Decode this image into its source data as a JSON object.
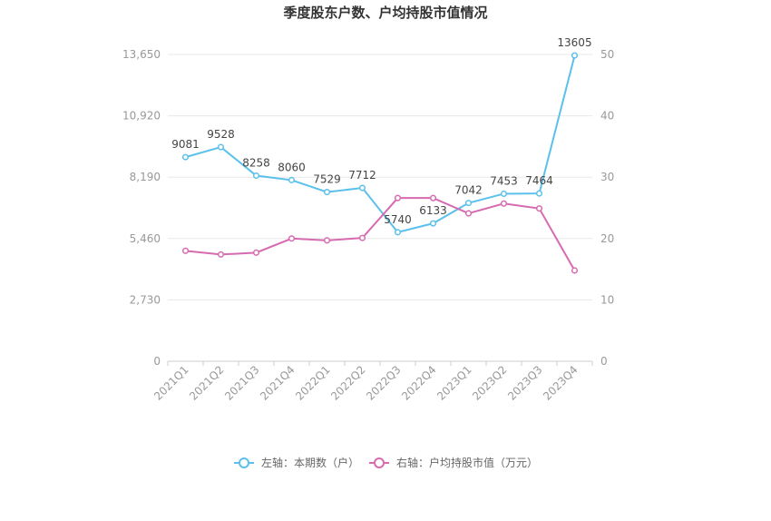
{
  "chart_data": {
    "type": "line",
    "title": "季度股东户数、户均持股市值情况",
    "categories": [
      "2021Q1",
      "2021Q2",
      "2021Q3",
      "2021Q4",
      "2022Q1",
      "2022Q2",
      "2022Q3",
      "2022Q4",
      "2023Q1",
      "2023Q2",
      "2023Q3",
      "2023Q4"
    ],
    "left_axis": {
      "ylim": [
        0,
        13650
      ],
      "ticks": [
        "0",
        "2,730",
        "5,460",
        "8,190",
        "10,920",
        "13,650"
      ]
    },
    "right_axis": {
      "ylim": [
        0,
        50
      ],
      "ticks": [
        "0",
        "10",
        "20",
        "30",
        "40",
        "50"
      ]
    },
    "series": [
      {
        "name": "左轴：本期数（户）",
        "axis": "left",
        "color": "#5bc0eb",
        "values": [
          9081,
          9528,
          8258,
          8060,
          7529,
          7712,
          5740,
          6133,
          7042,
          7453,
          7464,
          13605
        ],
        "labels": [
          "9081",
          "9528",
          "8258",
          "8060",
          "7529",
          "7712",
          "5740",
          "6133",
          "7042",
          "7453",
          "7464",
          "13605"
        ]
      },
      {
        "name": "右轴：户均持股市值（万元）",
        "axis": "right",
        "color": "#d66bb0",
        "values": [
          18.0,
          17.4,
          17.7,
          20.0,
          19.7,
          20.1,
          26.6,
          26.6,
          24.1,
          25.7,
          24.9,
          14.8
        ]
      }
    ],
    "grid": true,
    "legend_position": "bottom-center"
  }
}
